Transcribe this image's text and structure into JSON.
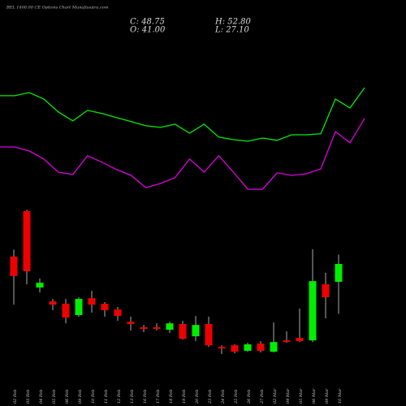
{
  "chart_data": {
    "type": "candlestick",
    "title": "BEL 1400.00 CE Options Chart Munafasutra.com",
    "close_label": "C: 48.75",
    "high_label": "H: 52.80",
    "open_label": "O: 41.00",
    "low_label": "L: 27.10",
    "categories": [
      "02 Feb",
      "03 Feb",
      "04 Feb",
      "05 Feb",
      "06 Feb",
      "09 Feb",
      "10 Feb",
      "11 Feb",
      "12 Feb",
      "13 Feb",
      "16 Feb",
      "17 Feb",
      "18 Feb",
      "19 Feb",
      "20 Feb",
      "23 Feb",
      "24 Feb",
      "25 Feb",
      "26 Feb",
      "27 Feb",
      "02 Mar",
      "04 Mar",
      "05 Mar",
      "06 Mar",
      "09 Mar",
      "10 Mar"
    ],
    "open": [
      51.9,
      71.6,
      38.5,
      32.5,
      31.5,
      26.6,
      33.9,
      31.5,
      29.0,
      23.7,
      21.3,
      21.3,
      20.2,
      22.7,
      17.4,
      22.7,
      12.8,
      13.5,
      11.1,
      14.2,
      10.7,
      15.6,
      16.7,
      15.6,
      39.9,
      41.0
    ],
    "high": [
      54.9,
      72.3,
      42.4,
      33.6,
      33.6,
      34.3,
      37.1,
      32.2,
      30.1,
      25.9,
      22.3,
      23.0,
      23.7,
      24.1,
      26.2,
      25.9,
      13.5,
      13.9,
      14.6,
      15.3,
      23.4,
      19.5,
      29.4,
      55.1,
      44.9,
      52.8
    ],
    "low": [
      31.1,
      39.9,
      36.4,
      28.7,
      23.0,
      25.9,
      27.6,
      25.9,
      24.1,
      19.9,
      19.2,
      19.9,
      18.8,
      16.0,
      15.3,
      12.8,
      9.7,
      10.0,
      10.7,
      10.4,
      10.4,
      14.6,
      14.9,
      14.9,
      25.2,
      27.1
    ],
    "close": [
      43.5,
      45.6,
      40.6,
      31.1,
      25.5,
      33.6,
      31.1,
      28.7,
      26.2,
      22.7,
      20.6,
      20.6,
      23.0,
      16.3,
      22.3,
      13.5,
      12.1,
      10.7,
      13.9,
      11.1,
      14.9,
      14.9,
      15.3,
      41.3,
      34.3,
      48.75
    ],
    "up_color": "#00ee00",
    "down_color": "#ee0000",
    "wick_color": "#aaaaaa",
    "lines": [
      {
        "color": "#00ee00",
        "values": [
          121.6,
          121.6,
          123.0,
          120.2,
          114.6,
          110.7,
          115.3,
          113.9,
          112.1,
          110.4,
          108.6,
          107.9,
          109.3,
          105.4,
          109.3,
          103.7,
          102.6,
          101.9,
          103.3,
          102.3,
          104.7,
          104.7,
          105.1,
          120.2,
          116.3,
          125.1
        ]
      },
      {
        "color": "#dd00dd",
        "values": [
          99.4,
          99.4,
          97.7,
          94.2,
          88.5,
          87.5,
          95.6,
          92.8,
          89.6,
          87.1,
          81.8,
          83.6,
          86.1,
          94.2,
          88.5,
          95.6,
          88.5,
          81.1,
          81.1,
          88.2,
          87.1,
          87.8,
          89.9,
          106.1,
          101.2,
          111.8
        ]
      }
    ]
  }
}
